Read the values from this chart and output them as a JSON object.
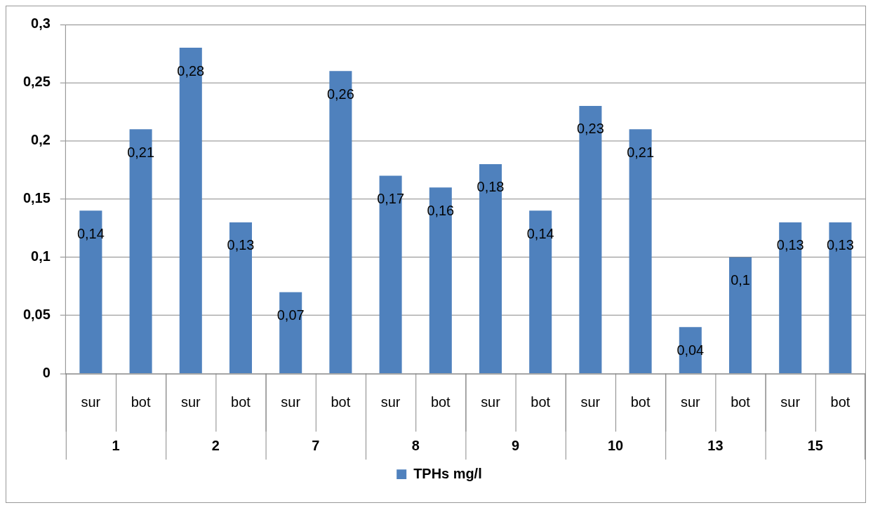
{
  "chart_data": {
    "type": "bar",
    "categories": [
      "sur",
      "bot",
      "sur",
      "bot",
      "sur",
      "bot",
      "sur",
      "bot",
      "sur",
      "bot",
      "sur",
      "bot",
      "sur",
      "bot",
      "sur",
      "bot"
    ],
    "annotations": [
      "1",
      "2",
      "7",
      "8",
      "9",
      "10",
      "13",
      "15"
    ],
    "series": [
      {
        "name": "TPHs mg/l",
        "color": "#4f81bd",
        "values": [
          0.14,
          0.21,
          0.28,
          0.13,
          0.07,
          0.26,
          0.17,
          0.16,
          0.18,
          0.14,
          0.23,
          0.21,
          0.04,
          0.1,
          0.13,
          0.13
        ],
        "value_labels": [
          "0,14",
          "0,21",
          "0,28",
          "0,13",
          "0,07",
          "0,26",
          "0,17",
          "0,16",
          "0,18",
          "0,14",
          "0,23",
          "0,21",
          "0,04",
          "0,1",
          "0,13",
          "0,13"
        ]
      }
    ],
    "ylim": [
      0,
      0.3
    ],
    "yticks": [
      {
        "value": 0,
        "label": "0"
      },
      {
        "value": 0.05,
        "label": "0,05"
      },
      {
        "value": 0.1,
        "label": "0,1"
      },
      {
        "value": 0.15,
        "label": "0,15"
      },
      {
        "value": 0.2,
        "label": "0,2"
      },
      {
        "value": 0.25,
        "label": "0,25"
      },
      {
        "value": 0.3,
        "label": "0,3"
      }
    ],
    "grid": "y",
    "legend": "bottom"
  }
}
